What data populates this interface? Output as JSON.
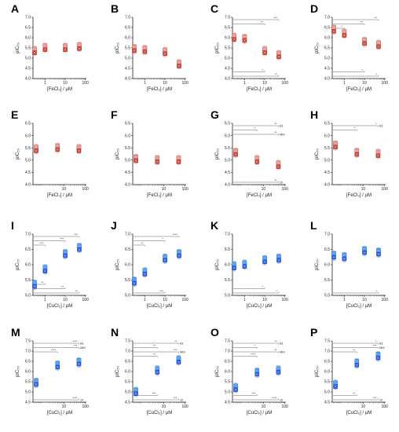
{
  "figure": {
    "colors": {
      "fe": "#c0392b",
      "fe_light": "#e8a0a0",
      "cu": "#1f4fd6",
      "cu_light": "#5aa9ef",
      "axis": "#222222",
      "bracket": "#666666"
    },
    "legend_tags": {
      "b1": "B1",
      "mm": "MM",
      "ctr": "ctr"
    }
  },
  "chart_data": [
    {
      "id": "A",
      "type": "scatter",
      "xlabel": "[FeCl₃] / µM",
      "ylabel": "pIC₅₀",
      "ylim": [
        4.0,
        7.0
      ],
      "yticks": [
        "4.0",
        "4.5",
        "5.0",
        "5.5",
        "6.0",
        "6.5",
        "7.0"
      ],
      "xticks": [
        "1",
        "10",
        "100"
      ],
      "metal": "fe",
      "series": [
        {
          "x": [
            0.3,
            1,
            10,
            50
          ],
          "y": [
            5.35,
            5.5,
            5.5,
            5.55
          ]
        }
      ],
      "brackets": []
    },
    {
      "id": "B",
      "type": "scatter",
      "xlabel": "[FeCl₃] / µM",
      "ylabel": "pIC₅₀",
      "ylim": [
        4.0,
        7.0
      ],
      "yticks": [
        "4.0",
        "4.5",
        "5.0",
        "5.5",
        "6.0",
        "6.5",
        "7.0"
      ],
      "xticks": [
        "1",
        "10",
        "100"
      ],
      "metal": "fe",
      "series": [
        {
          "x": [
            0.3,
            1,
            10,
            50
          ],
          "y": [
            5.45,
            5.4,
            5.3,
            4.7
          ]
        }
      ],
      "brackets": []
    },
    {
      "id": "C",
      "type": "scatter",
      "xlabel": "[FeCl₃] / µM",
      "ylabel": "pIC₅₀",
      "ylim": [
        4.0,
        7.0
      ],
      "yticks": [
        "4.0",
        "4.5",
        "5.0",
        "5.5",
        "6.0",
        "6.5",
        "7.0"
      ],
      "xticks": [
        "1",
        "10",
        "100"
      ],
      "metal": "fe",
      "series": [
        {
          "x": [
            0.3,
            1,
            10,
            50
          ],
          "y": [
            6.0,
            5.95,
            5.35,
            5.15
          ]
        }
      ],
      "brackets": [
        {
          "label": "***",
          "pos": "top",
          "row": 0,
          "to": 50
        },
        {
          "label": "**",
          "pos": "top",
          "row": 1,
          "to": 10
        },
        {
          "label": "*",
          "pos": "bottom",
          "row": 1,
          "to": 10
        },
        {
          "label": "**",
          "pos": "bottom",
          "row": 0,
          "to": 50
        }
      ]
    },
    {
      "id": "D",
      "type": "scatter",
      "xlabel": "[FeCl₃] / µM",
      "ylabel": "pIC₅₀",
      "ylim": [
        4.0,
        7.0
      ],
      "yticks": [
        "4.0",
        "4.5",
        "5.0",
        "5.5",
        "6.0",
        "6.5",
        "7.0"
      ],
      "xticks": [
        "1",
        "10",
        "100"
      ],
      "metal": "fe",
      "series": [
        {
          "x": [
            0.3,
            1,
            10,
            50
          ],
          "y": [
            6.4,
            6.2,
            5.8,
            5.65
          ]
        }
      ],
      "brackets": [
        {
          "label": "**",
          "pos": "top",
          "row": 0,
          "to": 50
        },
        {
          "label": "**",
          "pos": "top",
          "row": 1,
          "to": 10
        },
        {
          "label": "*",
          "pos": "top",
          "row": 2,
          "to": 1
        },
        {
          "label": "*",
          "pos": "bottom",
          "row": 1,
          "to": 10
        },
        {
          "label": "*",
          "pos": "bottom",
          "row": 0,
          "to": 50
        }
      ]
    },
    {
      "id": "E",
      "type": "scatter",
      "xlabel": "[FeCl₃] / µM",
      "ylabel": "pIC₅₀",
      "ylim": [
        4.0,
        6.5
      ],
      "yticks": [
        "4.0",
        "4.5",
        "5.0",
        "5.5",
        "6.0",
        "6.5"
      ],
      "xticks": [
        "10",
        "100"
      ],
      "metal": "fe",
      "series": [
        {
          "x": [
            0.5,
            5,
            50
          ],
          "y": [
            5.45,
            5.5,
            5.45
          ]
        }
      ],
      "brackets": []
    },
    {
      "id": "F",
      "type": "scatter",
      "xlabel": "[FeCl₃] / µM",
      "ylabel": "pIC₅₀",
      "ylim": [
        4.0,
        6.5
      ],
      "yticks": [
        "4.0",
        "4.5",
        "5.0",
        "5.5",
        "6.0",
        "6.5"
      ],
      "xticks": [
        "10",
        "100"
      ],
      "metal": "fe",
      "series": [
        {
          "x": [
            0.5,
            5,
            50
          ],
          "y": [
            5.05,
            5.0,
            5.0
          ]
        }
      ],
      "brackets": []
    },
    {
      "id": "G",
      "type": "scatter",
      "xlabel": "[FeCl₃] / µM",
      "ylabel": "pIC₅₀",
      "ylim": [
        4.0,
        6.5
      ],
      "yticks": [
        "4.0",
        "4.5",
        "5.0",
        "5.5",
        "6.0",
        "6.5"
      ],
      "xticks": [
        "10",
        "100"
      ],
      "metal": "fe",
      "series": [
        {
          "x": [
            0.5,
            5,
            50
          ],
          "y": [
            5.3,
            5.0,
            4.8
          ]
        }
      ],
      "brackets": [
        {
          "label": "**",
          "pos": "top",
          "row": 0,
          "to": 50,
          "tag": "b1"
        },
        {
          "label": "*",
          "pos": "top",
          "row": 1,
          "to": 5
        },
        {
          "label": "**",
          "pos": "top",
          "row": 2,
          "to": 50,
          "tag": "mm"
        },
        {
          "label": "**",
          "pos": "bottom",
          "row": 0,
          "to": 50,
          "tag": "ctr"
        }
      ]
    },
    {
      "id": "H",
      "type": "scatter",
      "xlabel": "[FeCl₃] / µM",
      "ylabel": "pIC₅₀",
      "ylim": [
        4.0,
        6.5
      ],
      "yticks": [
        "4.0",
        "4.5",
        "5.0",
        "5.5",
        "6.0",
        "6.5"
      ],
      "xticks": [
        "10",
        "100"
      ],
      "metal": "fe",
      "series": [
        {
          "x": [
            0.5,
            5,
            50
          ],
          "y": [
            5.6,
            5.3,
            5.25
          ]
        }
      ],
      "brackets": [
        {
          "label": "*",
          "pos": "top",
          "row": 0,
          "to": 50,
          "tag": "b1"
        },
        {
          "label": "*",
          "pos": "top",
          "row": 1,
          "to": 5
        }
      ]
    },
    {
      "id": "I",
      "type": "scatter",
      "xlabel": "[CuCl₂] / µM",
      "ylabel": "pIC₅₀",
      "ylim": [
        5.0,
        7.0
      ],
      "yticks": [
        "5.0",
        "5.5",
        "6.0",
        "6.5",
        "7.0"
      ],
      "xticks": [
        "1",
        "10",
        "100"
      ],
      "metal": "cu",
      "series": [
        {
          "x": [
            0.3,
            1,
            10,
            50
          ],
          "y": [
            5.35,
            5.85,
            6.35,
            6.55
          ]
        }
      ],
      "brackets": [
        {
          "label": "***",
          "pos": "top",
          "row": 0,
          "to": 50
        },
        {
          "label": "***",
          "pos": "top",
          "row": 1,
          "to": 10
        },
        {
          "label": "***",
          "pos": "top",
          "row": 2,
          "to": 1
        },
        {
          "label": "**",
          "pos": "bottom",
          "row": 2,
          "to": 1
        },
        {
          "label": "**",
          "pos": "bottom",
          "row": 1,
          "to": 10
        },
        {
          "label": "**",
          "pos": "bottom",
          "row": 0,
          "to": 50
        }
      ]
    },
    {
      "id": "J",
      "type": "scatter",
      "xlabel": "[CuCl₂] / µM",
      "ylabel": "pIC₅₀",
      "ylim": [
        5.0,
        7.0
      ],
      "yticks": [
        "5.0",
        "5.5",
        "6.0",
        "6.5",
        "7.0"
      ],
      "xticks": [
        "1",
        "10",
        "100"
      ],
      "metal": "cu",
      "series": [
        {
          "x": [
            0.3,
            1,
            10,
            50
          ],
          "y": [
            5.45,
            5.75,
            6.2,
            6.35
          ]
        }
      ],
      "brackets": [
        {
          "label": "****",
          "pos": "top",
          "row": 0,
          "to": 50
        },
        {
          "label": "*",
          "pos": "top",
          "row": 1,
          "to": 10
        },
        {
          "label": "**",
          "pos": "top",
          "row": 2,
          "to": 1
        },
        {
          "label": "***",
          "pos": "bottom",
          "row": 0,
          "to": 10
        }
      ]
    },
    {
      "id": "K",
      "type": "scatter",
      "xlabel": "[CuCl₂] / µM",
      "ylabel": "pIC₅₀",
      "ylim": [
        5.0,
        7.0
      ],
      "yticks": [
        "5.0",
        "5.5",
        "6.0",
        "6.5",
        "7.0"
      ],
      "xticks": [
        "1",
        "10",
        "100"
      ],
      "metal": "cu",
      "series": [
        {
          "x": [
            0.3,
            1,
            10,
            50
          ],
          "y": [
            5.95,
            6.0,
            6.15,
            6.2
          ]
        }
      ],
      "brackets": [
        {
          "label": "*",
          "pos": "bottom",
          "row": 1,
          "to": 10
        },
        {
          "label": "*",
          "pos": "bottom",
          "row": 0,
          "to": 50
        }
      ]
    },
    {
      "id": "L",
      "type": "scatter",
      "xlabel": "[CuCl₂] / µM",
      "ylabel": "pIC₅₀",
      "ylim": [
        5.0,
        7.0
      ],
      "yticks": [
        "5.0",
        "5.5",
        "6.0",
        "6.5",
        "7.0"
      ],
      "xticks": [
        "1",
        "10",
        "100"
      ],
      "metal": "cu",
      "series": [
        {
          "x": [
            0.3,
            1,
            10,
            50
          ],
          "y": [
            6.3,
            6.25,
            6.45,
            6.4
          ]
        }
      ],
      "brackets": [
        {
          "label": "*",
          "pos": "bottom",
          "row": 0,
          "to": 50
        }
      ]
    },
    {
      "id": "M",
      "type": "scatter",
      "xlabel": "[CuCl₂] / µM",
      "ylabel": "pIC₅₀",
      "ylim": [
        4.5,
        7.5
      ],
      "yticks": [
        "4.5",
        "5.0",
        "5.5",
        "6.0",
        "6.5",
        "7.0",
        "7.5"
      ],
      "xticks": [
        "10",
        "100"
      ],
      "metal": "cu",
      "series": [
        {
          "x": [
            0.5,
            5,
            50
          ],
          "y": [
            5.45,
            6.3,
            6.45
          ]
        }
      ],
      "brackets": [
        {
          "label": "****",
          "pos": "top",
          "row": 0,
          "to": 50,
          "tag": "b1"
        },
        {
          "label": "***",
          "pos": "top",
          "row": 1,
          "to": 50,
          "tag": "mm"
        },
        {
          "label": "****",
          "pos": "top",
          "row": 2,
          "to": 5
        },
        {
          "label": "****",
          "pos": "bottom",
          "row": 0,
          "to": 50,
          "tag": "ctr"
        }
      ]
    },
    {
      "id": "N",
      "type": "scatter",
      "xlabel": "[CuCl₂] / µM",
      "ylabel": "pIC₅₀",
      "ylim": [
        4.5,
        7.5
      ],
      "yticks": [
        "4.5",
        "5.0",
        "5.5",
        "6.0",
        "6.5",
        "7.0",
        "7.5"
      ],
      "xticks": [
        "10",
        "100"
      ],
      "metal": "cu",
      "series": [
        {
          "x": [
            0.5,
            5,
            50
          ],
          "y": [
            5.0,
            6.05,
            6.55
          ]
        }
      ],
      "brackets": [
        {
          "label": "**",
          "pos": "top",
          "row": 0,
          "to": 50,
          "tag": "b1"
        },
        {
          "label": "**",
          "pos": "top",
          "row": 1,
          "to": 5
        },
        {
          "label": "***",
          "pos": "top",
          "row": 2,
          "to": 50,
          "tag": "mm"
        },
        {
          "label": "**",
          "pos": "top",
          "row": 3,
          "to": 5
        },
        {
          "label": "***",
          "pos": "bottom",
          "row": 1,
          "to": 5
        },
        {
          "label": "***",
          "pos": "bottom",
          "row": 0,
          "to": 50,
          "tag": "ctr"
        }
      ]
    },
    {
      "id": "O",
      "type": "scatter",
      "xlabel": "[CuCl₂] / µM",
      "ylabel": "pIC₅₀",
      "ylim": [
        4.5,
        7.5
      ],
      "yticks": [
        "4.5",
        "5.0",
        "5.5",
        "6.0",
        "6.5",
        "7.0",
        "7.5"
      ],
      "xticks": [
        "10",
        "100"
      ],
      "metal": "cu",
      "series": [
        {
          "x": [
            0.5,
            5,
            50
          ],
          "y": [
            5.2,
            5.95,
            6.05
          ]
        }
      ],
      "brackets": [
        {
          "label": "**",
          "pos": "top",
          "row": 0,
          "to": 50,
          "tag": "b1"
        },
        {
          "label": "*",
          "pos": "top",
          "row": 1,
          "to": 5
        },
        {
          "label": "**",
          "pos": "top",
          "row": 2,
          "to": 50,
          "tag": "mm"
        },
        {
          "label": "****",
          "pos": "top",
          "row": 3,
          "to": 5
        },
        {
          "label": "***",
          "pos": "bottom",
          "row": 1,
          "to": 5
        },
        {
          "label": "****",
          "pos": "bottom",
          "row": 0,
          "to": 50,
          "tag": "ctr"
        }
      ]
    },
    {
      "id": "P",
      "type": "scatter",
      "xlabel": "[CuCl₂] / µM",
      "ylabel": "pIC₅₀",
      "ylim": [
        4.5,
        7.5
      ],
      "yticks": [
        "4.5",
        "5.0",
        "5.5",
        "6.0",
        "6.5",
        "7.0",
        "7.5"
      ],
      "xticks": [
        "10",
        "100"
      ],
      "metal": "cu",
      "series": [
        {
          "x": [
            0.5,
            5,
            50
          ],
          "y": [
            5.35,
            6.4,
            6.75
          ]
        }
      ],
      "brackets": [
        {
          "label": "*",
          "pos": "top",
          "row": 0,
          "to": 50,
          "tag": "b1"
        },
        {
          "label": "***",
          "pos": "top",
          "row": 1,
          "to": 50,
          "tag": "mm"
        },
        {
          "label": "**",
          "pos": "top",
          "row": 2,
          "to": 5
        },
        {
          "label": "**",
          "pos": "bottom",
          "row": 1,
          "to": 5
        },
        {
          "label": "***",
          "pos": "bottom",
          "row": 0,
          "to": 50,
          "tag": "ctr"
        }
      ]
    }
  ]
}
